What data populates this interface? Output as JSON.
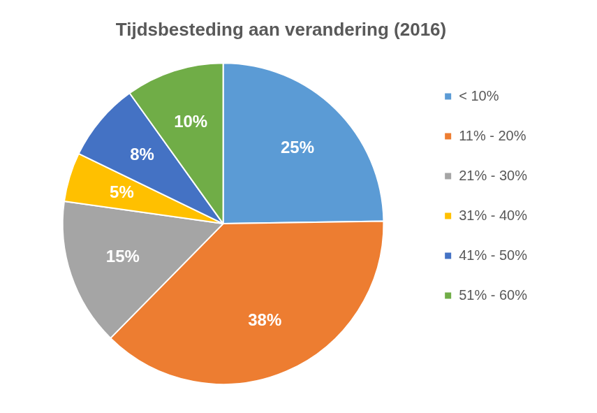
{
  "chart_data": {
    "type": "pie",
    "title": "Tijdsbesteding aan verandering (2016)",
    "categories": [
      "< 10%",
      "11% - 20%",
      "21% - 30%",
      "31% - 40%",
      "41% - 50%",
      "51% - 60%"
    ],
    "values": [
      25,
      38,
      15,
      5,
      8,
      10
    ],
    "value_labels": [
      "25%",
      "38%",
      "15%",
      "5%",
      "8%",
      "10%"
    ],
    "colors": [
      "#5b9bd5",
      "#ed7d31",
      "#a5a5a5",
      "#ffc000",
      "#4472c4",
      "#70ad47"
    ],
    "legend": "right",
    "data_labels": true
  }
}
